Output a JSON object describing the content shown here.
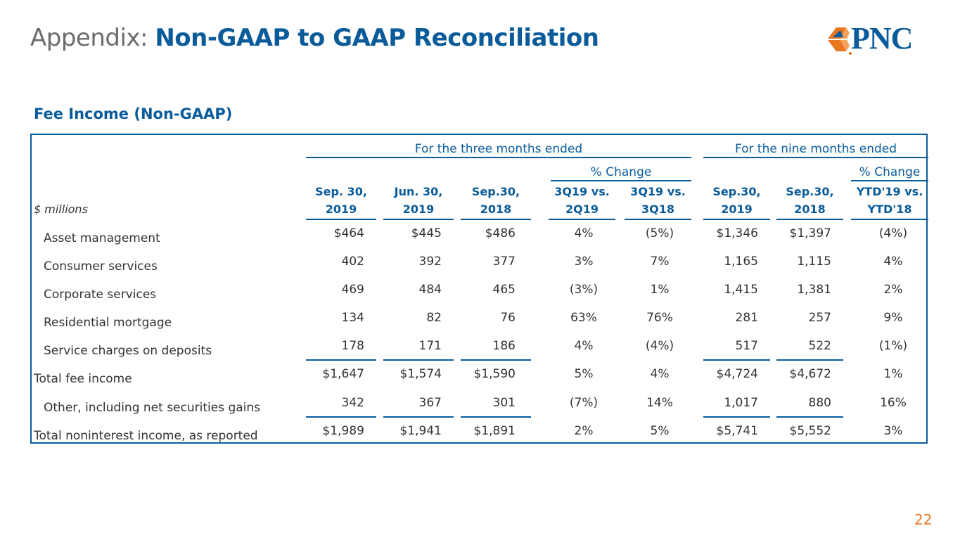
{
  "slide": {
    "title_prefix": "Appendix:",
    "title_main": "Non-GAAP to GAAP Reconciliation",
    "logo_text": "PNC",
    "subtitle": "Fee Income (Non-GAAP)",
    "page_number": "22"
  },
  "table": {
    "group_three_months": "For the three months ended",
    "group_nine_months": "For the nine months ended",
    "pct_change_three": "% Change",
    "pct_change_nine": "% Change",
    "units_label": "$ millions",
    "columns": [
      {
        "line1": "Sep. 30,",
        "line2": "2019"
      },
      {
        "line1": "Jun. 30,",
        "line2": "2019"
      },
      {
        "line1": "Sep.30,",
        "line2": "2018"
      },
      {
        "line1": "3Q19 vs.",
        "line2": "2Q19"
      },
      {
        "line1": "3Q19 vs.",
        "line2": "3Q18"
      },
      {
        "line1": "Sep.30,",
        "line2": "2019"
      },
      {
        "line1": "Sep.30,",
        "line2": "2018"
      },
      {
        "line1": "YTD'19 vs.",
        "line2": "YTD'18"
      }
    ],
    "rows": [
      {
        "label": "Asset management",
        "values": [
          "$464",
          "$445",
          "$486",
          "4%",
          "(5%)",
          "$1,346",
          "$1,397",
          "(4%)"
        ]
      },
      {
        "label": "Consumer services",
        "values": [
          "402",
          "392",
          "377",
          "3%",
          "7%",
          "1,165",
          "1,115",
          "4%"
        ]
      },
      {
        "label": "Corporate services",
        "values": [
          "469",
          "484",
          "465",
          "(3%)",
          "1%",
          "1,415",
          "1,381",
          "2%"
        ]
      },
      {
        "label": "Residential mortgage",
        "values": [
          "134",
          "82",
          "76",
          "63%",
          "76%",
          "281",
          "257",
          "9%"
        ]
      },
      {
        "label": "Service charges on deposits",
        "values": [
          "178",
          "171",
          "186",
          "4%",
          "(4%)",
          "517",
          "522",
          "(1%)"
        ]
      },
      {
        "label": "Total fee income",
        "values": [
          "$1,647",
          "$1,574",
          "$1,590",
          "5%",
          "4%",
          "$4,724",
          "$4,672",
          "1%"
        ]
      },
      {
        "label": "Other, including net securities gains",
        "values": [
          "342",
          "367",
          "301",
          "(7%)",
          "14%",
          "1,017",
          "880",
          "16%"
        ]
      },
      {
        "label": "Total noninterest income, as reported",
        "values": [
          "$1,989",
          "$1,941",
          "$1,891",
          "2%",
          "5%",
          "$5,741",
          "$5,552",
          "3%"
        ]
      }
    ]
  },
  "colors": {
    "brand_blue": "#0a5b9a",
    "brand_orange": "#e87722"
  }
}
